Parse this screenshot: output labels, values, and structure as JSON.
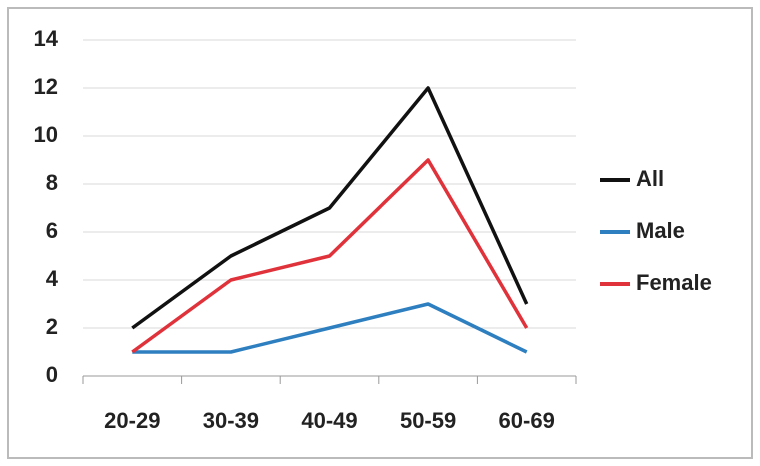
{
  "chart_data": {
    "type": "line",
    "categories": [
      "20-29",
      "30-39",
      "40-49",
      "50-59",
      "60-69"
    ],
    "series": [
      {
        "name": "All",
        "color": "#111111",
        "values": [
          2,
          5,
          7,
          12,
          3
        ]
      },
      {
        "name": "Male",
        "color": "#2e7fc0",
        "values": [
          1,
          1,
          2,
          3,
          1
        ]
      },
      {
        "name": "Female",
        "color": "#e0323a",
        "values": [
          1,
          4,
          5,
          9,
          2
        ]
      }
    ],
    "ylim": [
      0,
      14
    ],
    "yticks": [
      0,
      2,
      4,
      6,
      8,
      10,
      12,
      14
    ],
    "grid": true,
    "legend": "right"
  }
}
